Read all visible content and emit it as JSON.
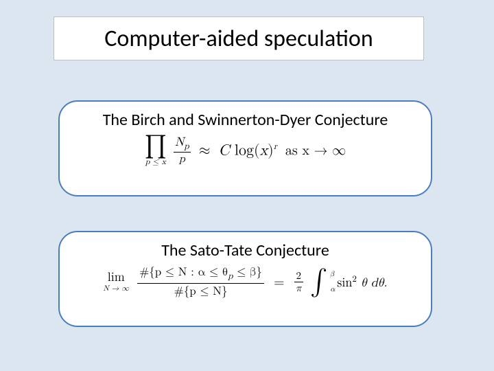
{
  "slide": {
    "background_color": "#dce6f1",
    "title_bar": {
      "bg": "#ffffff",
      "border": "#bfbfbf"
    },
    "card_border_color": "#4a7ebb",
    "card_bg": "#ffffff",
    "title": "Computer-aided speculation",
    "title_fontsize": 34,
    "card_title_fontsize": 24
  },
  "bsd": {
    "title": "The Birch and Swinnerton-Dyer Conjecture",
    "prod_symbol": "∏",
    "prod_sub": "p ≤ x",
    "frac_num": "N",
    "frac_num_sub": "p",
    "frac_den": "p",
    "approx": "≈",
    "C": "C",
    "log": " log(",
    "xvar": "x",
    "close": ")",
    "exp": "r",
    "tail": " as x → ∞"
  },
  "st": {
    "title": "The Sato-Tate Conjecture",
    "lim": "lim",
    "lim_sub": "N → ∞",
    "num_hash": "#{p ≤ N : α ≤ θ",
    "num_sub": "p",
    "num_rest": " ≤ β}",
    "den": "#{p ≤ N}",
    "eq": "=",
    "two": "2",
    "pi": "π",
    "int": "∫",
    "int_upper": "β",
    "int_lower": "α",
    "sin": "sin",
    "sq": "2",
    "theta": " θ dθ.",
    "space": " "
  }
}
